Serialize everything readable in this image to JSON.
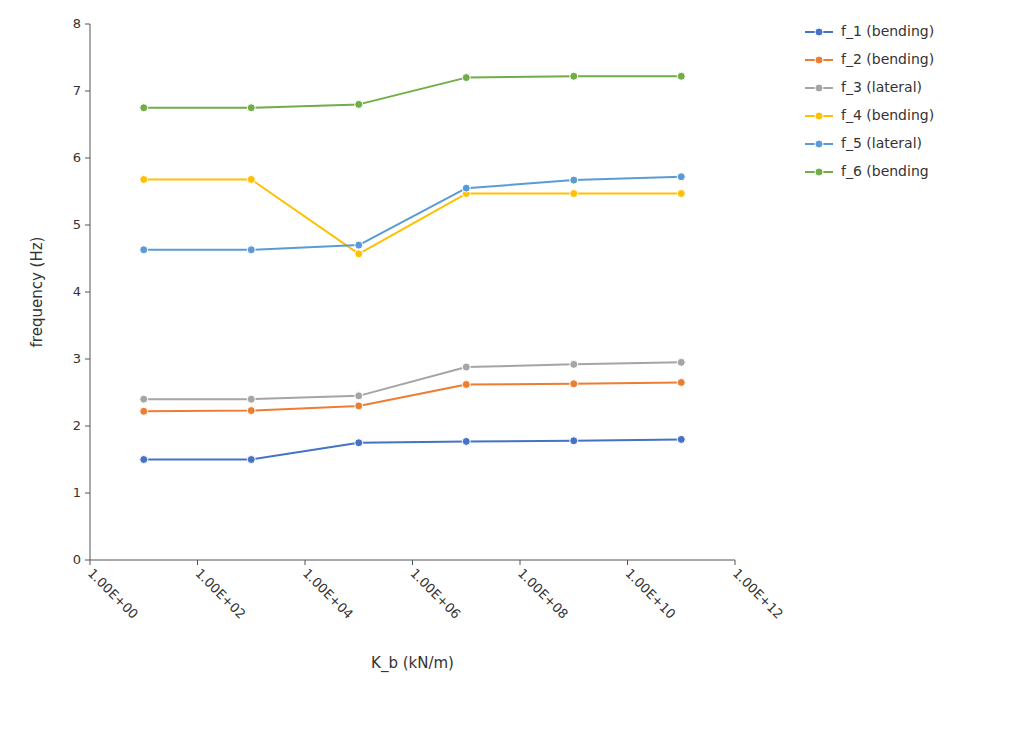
{
  "chart_data": {
    "type": "line",
    "x": [
      10,
      1000,
      100000,
      10000000,
      1000000000,
      100000000000
    ],
    "series": [
      {
        "name": "f_1 (bending)",
        "color": "#4472C4",
        "values": [
          1.5,
          1.5,
          1.75,
          1.77,
          1.78,
          1.8
        ]
      },
      {
        "name": "f_2 (bending)",
        "color": "#ED7D31",
        "values": [
          2.22,
          2.23,
          2.3,
          2.62,
          2.63,
          2.65
        ]
      },
      {
        "name": "f_3 (lateral)",
        "color": "#A5A5A5",
        "values": [
          2.4,
          2.4,
          2.45,
          2.88,
          2.92,
          2.95
        ]
      },
      {
        "name": "f_4 (bending)",
        "color": "#FFC000",
        "values": [
          5.68,
          5.68,
          4.57,
          5.47,
          5.47,
          5.47
        ]
      },
      {
        "name": "f_5 (lateral)",
        "color": "#5B9BD5",
        "values": [
          4.63,
          4.63,
          4.7,
          5.55,
          5.67,
          5.72
        ]
      },
      {
        "name": "f_6 (bending",
        "color": "#70AD47",
        "values": [
          6.75,
          6.75,
          6.8,
          7.2,
          7.22,
          7.22
        ]
      }
    ],
    "x_label": "K_b (kN/m)",
    "y_label": "frequency (Hz)",
    "log": "x",
    "xlim": [
      1,
      1000000000000
    ],
    "xticks": [
      {
        "value": 1,
        "label": "1.00E+00"
      },
      {
        "value": 100,
        "label": "1.00E+02"
      },
      {
        "value": 10000,
        "label": "1.00E+04"
      },
      {
        "value": 1000000,
        "label": "1.00E+06"
      },
      {
        "value": 100000000,
        "label": "1.00E+08"
      },
      {
        "value": 10000000000,
        "label": "1.00E+10"
      },
      {
        "value": 1000000000000,
        "label": "1.00E+12"
      }
    ],
    "ylim": [
      0,
      8
    ],
    "yticks": [
      0,
      1,
      2,
      3,
      4,
      5,
      6,
      7,
      8
    ],
    "grid": false,
    "legend": "right",
    "marker": "circle"
  }
}
